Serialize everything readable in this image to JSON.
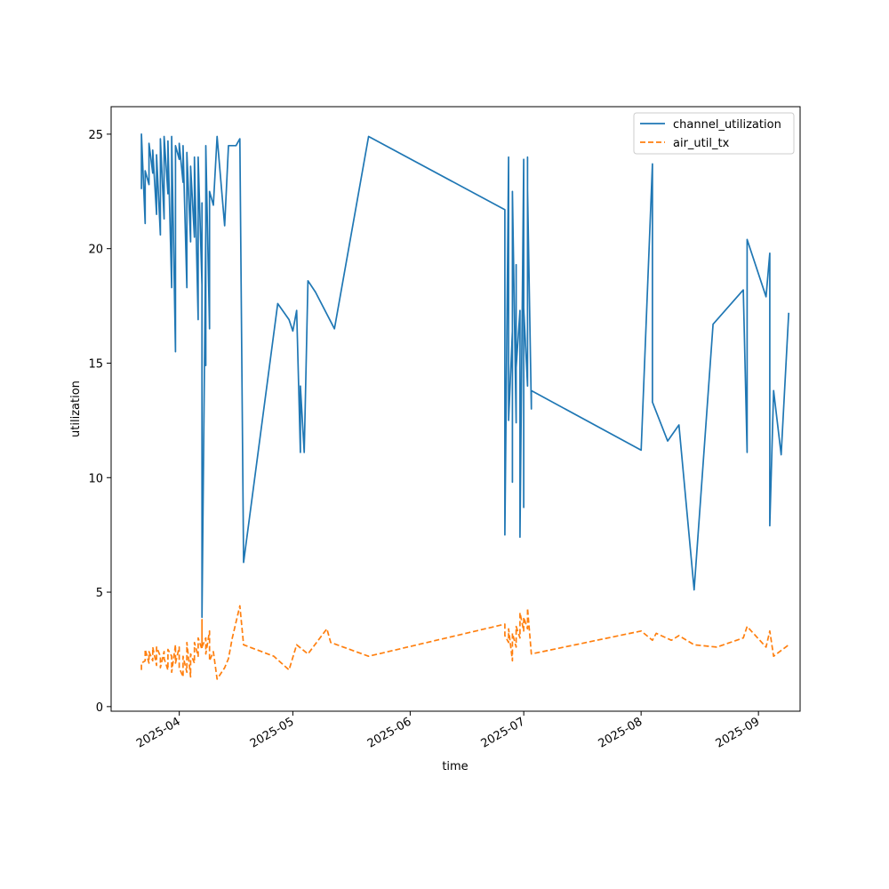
{
  "chart_data": {
    "type": "line",
    "title": "",
    "xlabel": "time",
    "ylabel": "utilization",
    "x_type": "date",
    "xlim": [
      "2025-03-14",
      "2025-09-12"
    ],
    "ylim": [
      -0.2,
      26.2
    ],
    "x_ticks": [
      {
        "value": "2025-04-01",
        "label": "2025-04"
      },
      {
        "value": "2025-05-01",
        "label": "2025-05"
      },
      {
        "value": "2025-06-01",
        "label": "2025-06"
      },
      {
        "value": "2025-07-01",
        "label": "2025-07"
      },
      {
        "value": "2025-08-01",
        "label": "2025-08"
      },
      {
        "value": "2025-09-01",
        "label": "2025-09"
      }
    ],
    "y_ticks": [
      0,
      5,
      10,
      15,
      20,
      25
    ],
    "grid": false,
    "legend_position": "top-right",
    "series": [
      {
        "name": "channel_utilization",
        "color": "#1f77b4",
        "line_style": "solid",
        "points": [
          [
            "2025-03-22",
            22.6
          ],
          [
            "2025-03-22",
            25.0
          ],
          [
            "2025-03-23",
            21.1
          ],
          [
            "2025-03-23",
            23.4
          ],
          [
            "2025-03-24",
            22.8
          ],
          [
            "2025-03-24",
            24.6
          ],
          [
            "2025-03-25",
            23.3
          ],
          [
            "2025-03-25",
            24.3
          ],
          [
            "2025-03-26",
            21.5
          ],
          [
            "2025-03-26",
            24.1
          ],
          [
            "2025-03-27",
            20.6
          ],
          [
            "2025-03-27",
            24.8
          ],
          [
            "2025-03-28",
            21.3
          ],
          [
            "2025-03-28",
            24.9
          ],
          [
            "2025-03-29",
            22.4
          ],
          [
            "2025-03-29",
            24.7
          ],
          [
            "2025-03-30",
            18.3
          ],
          [
            "2025-03-30",
            24.9
          ],
          [
            "2025-03-31",
            15.5
          ],
          [
            "2025-03-31",
            24.5
          ],
          [
            "2025-04-01",
            23.9
          ],
          [
            "2025-04-01",
            24.6
          ],
          [
            "2025-04-02",
            22.9
          ],
          [
            "2025-04-02",
            24.5
          ],
          [
            "2025-04-03",
            18.3
          ],
          [
            "2025-04-03",
            24.2
          ],
          [
            "2025-04-04",
            20.3
          ],
          [
            "2025-04-04",
            23.6
          ],
          [
            "2025-04-05",
            20.5
          ],
          [
            "2025-04-05",
            24.0
          ],
          [
            "2025-04-06",
            16.9
          ],
          [
            "2025-04-06",
            24.0
          ],
          [
            "2025-04-07",
            18.4
          ],
          [
            "2025-04-07",
            22.0
          ],
          [
            "2025-04-07",
            12.8
          ],
          [
            "2025-04-07",
            3.9
          ],
          [
            "2025-04-08",
            20.9
          ],
          [
            "2025-04-08",
            14.9
          ],
          [
            "2025-04-08",
            24.5
          ],
          [
            "2025-04-09",
            16.5
          ],
          [
            "2025-04-09",
            22.5
          ],
          [
            "2025-04-10",
            21.9
          ],
          [
            "2025-04-11",
            24.9
          ],
          [
            "2025-04-13",
            21.0
          ],
          [
            "2025-04-14",
            24.5
          ],
          [
            "2025-04-16",
            24.5
          ],
          [
            "2025-04-17",
            24.8
          ],
          [
            "2025-04-18",
            6.3
          ],
          [
            "2025-04-27",
            17.6
          ],
          [
            "2025-04-30",
            16.9
          ],
          [
            "2025-05-01",
            16.4
          ],
          [
            "2025-05-02",
            17.3
          ],
          [
            "2025-05-03",
            11.1
          ],
          [
            "2025-05-03",
            14.0
          ],
          [
            "2025-05-04",
            11.1
          ],
          [
            "2025-05-05",
            18.6
          ],
          [
            "2025-05-07",
            18.1
          ],
          [
            "2025-05-12",
            16.5
          ],
          [
            "2025-05-21",
            24.9
          ],
          [
            "2025-06-26",
            21.7
          ],
          [
            "2025-06-26",
            7.5
          ],
          [
            "2025-06-27",
            24.0
          ],
          [
            "2025-06-27",
            12.5
          ],
          [
            "2025-06-28",
            16.4
          ],
          [
            "2025-06-28",
            9.8
          ],
          [
            "2025-06-28",
            22.5
          ],
          [
            "2025-06-29",
            12.4
          ],
          [
            "2025-06-29",
            19.3
          ],
          [
            "2025-06-29",
            14.8
          ],
          [
            "2025-06-30",
            17.3
          ],
          [
            "2025-06-30",
            7.4
          ],
          [
            "2025-07-01",
            23.9
          ],
          [
            "2025-07-01",
            8.7
          ],
          [
            "2025-07-01",
            17.4
          ],
          [
            "2025-07-02",
            14.0
          ],
          [
            "2025-07-02",
            24.0
          ],
          [
            "2025-07-02",
            15.8
          ],
          [
            "2025-07-02",
            22.6
          ],
          [
            "2025-07-03",
            13.0
          ],
          [
            "2025-07-03",
            13.8
          ],
          [
            "2025-08-01",
            11.2
          ],
          [
            "2025-08-04",
            23.7
          ],
          [
            "2025-08-04",
            13.3
          ],
          [
            "2025-08-08",
            11.6
          ],
          [
            "2025-08-11",
            12.3
          ],
          [
            "2025-08-15",
            5.1
          ],
          [
            "2025-08-20",
            16.7
          ],
          [
            "2025-08-28",
            18.2
          ],
          [
            "2025-08-29",
            11.1
          ],
          [
            "2025-08-29",
            20.4
          ],
          [
            "2025-09-03",
            17.9
          ],
          [
            "2025-09-04",
            19.8
          ],
          [
            "2025-09-04",
            7.9
          ],
          [
            "2025-09-05",
            13.8
          ],
          [
            "2025-09-07",
            11.0
          ],
          [
            "2025-09-09",
            17.2
          ]
        ]
      },
      {
        "name": "air_util_tx",
        "color": "#ff7f0e",
        "line_style": "dashed",
        "points": [
          [
            "2025-03-22",
            1.6
          ],
          [
            "2025-03-22",
            1.9
          ],
          [
            "2025-03-23",
            2.0
          ],
          [
            "2025-03-23",
            2.5
          ],
          [
            "2025-03-24",
            1.9
          ],
          [
            "2025-03-24",
            2.4
          ],
          [
            "2025-03-25",
            2.0
          ],
          [
            "2025-03-25",
            2.6
          ],
          [
            "2025-03-26",
            1.8
          ],
          [
            "2025-03-26",
            2.6
          ],
          [
            "2025-03-27",
            2.2
          ],
          [
            "2025-03-27",
            1.7
          ],
          [
            "2025-03-28",
            2.4
          ],
          [
            "2025-03-28",
            2.1
          ],
          [
            "2025-03-29",
            1.6
          ],
          [
            "2025-03-29",
            2.5
          ],
          [
            "2025-03-30",
            2.2
          ],
          [
            "2025-03-30",
            1.5
          ],
          [
            "2025-03-31",
            2.7
          ],
          [
            "2025-03-31",
            1.9
          ],
          [
            "2025-04-01",
            2.6
          ],
          [
            "2025-04-01",
            1.7
          ],
          [
            "2025-04-02",
            1.3
          ],
          [
            "2025-04-02",
            2.2
          ],
          [
            "2025-04-03",
            1.5
          ],
          [
            "2025-04-03",
            2.8
          ],
          [
            "2025-04-04",
            1.3
          ],
          [
            "2025-04-04",
            2.3
          ],
          [
            "2025-04-05",
            1.9
          ],
          [
            "2025-04-05",
            2.8
          ],
          [
            "2025-04-06",
            2.2
          ],
          [
            "2025-04-06",
            3.0
          ],
          [
            "2025-04-07",
            2.5
          ],
          [
            "2025-04-07",
            3.8
          ],
          [
            "2025-04-07",
            2.6
          ],
          [
            "2025-04-08",
            3.0
          ],
          [
            "2025-04-08",
            2.3
          ],
          [
            "2025-04-09",
            3.3
          ],
          [
            "2025-04-09",
            2.0
          ],
          [
            "2025-04-10",
            2.4
          ],
          [
            "2025-04-11",
            1.2
          ],
          [
            "2025-04-13",
            1.7
          ],
          [
            "2025-04-14",
            2.1
          ],
          [
            "2025-04-15",
            3.0
          ],
          [
            "2025-04-17",
            4.4
          ],
          [
            "2025-04-18",
            2.7
          ],
          [
            "2025-04-26",
            2.2
          ],
          [
            "2025-04-30",
            1.6
          ],
          [
            "2025-05-02",
            2.7
          ],
          [
            "2025-05-05",
            2.3
          ],
          [
            "2025-05-10",
            3.4
          ],
          [
            "2025-05-11",
            2.8
          ],
          [
            "2025-05-21",
            2.2
          ],
          [
            "2025-06-26",
            3.6
          ],
          [
            "2025-06-26",
            3.1
          ],
          [
            "2025-06-27",
            2.8
          ],
          [
            "2025-06-27",
            3.4
          ],
          [
            "2025-06-28",
            2.0
          ],
          [
            "2025-06-28",
            3.2
          ],
          [
            "2025-06-29",
            2.6
          ],
          [
            "2025-06-29",
            3.5
          ],
          [
            "2025-06-30",
            3.0
          ],
          [
            "2025-06-30",
            4.1
          ],
          [
            "2025-07-01",
            3.3
          ],
          [
            "2025-07-01",
            3.9
          ],
          [
            "2025-07-02",
            3.4
          ],
          [
            "2025-07-02",
            4.3
          ],
          [
            "2025-07-03",
            2.3
          ],
          [
            "2025-08-01",
            3.3
          ],
          [
            "2025-08-04",
            2.9
          ],
          [
            "2025-08-05",
            3.2
          ],
          [
            "2025-08-09",
            2.9
          ],
          [
            "2025-08-11",
            3.1
          ],
          [
            "2025-08-15",
            2.7
          ],
          [
            "2025-08-21",
            2.6
          ],
          [
            "2025-08-28",
            3.0
          ],
          [
            "2025-08-29",
            3.5
          ],
          [
            "2025-09-03",
            2.6
          ],
          [
            "2025-09-04",
            3.3
          ],
          [
            "2025-09-05",
            2.2
          ],
          [
            "2025-09-09",
            2.7
          ]
        ]
      }
    ]
  }
}
